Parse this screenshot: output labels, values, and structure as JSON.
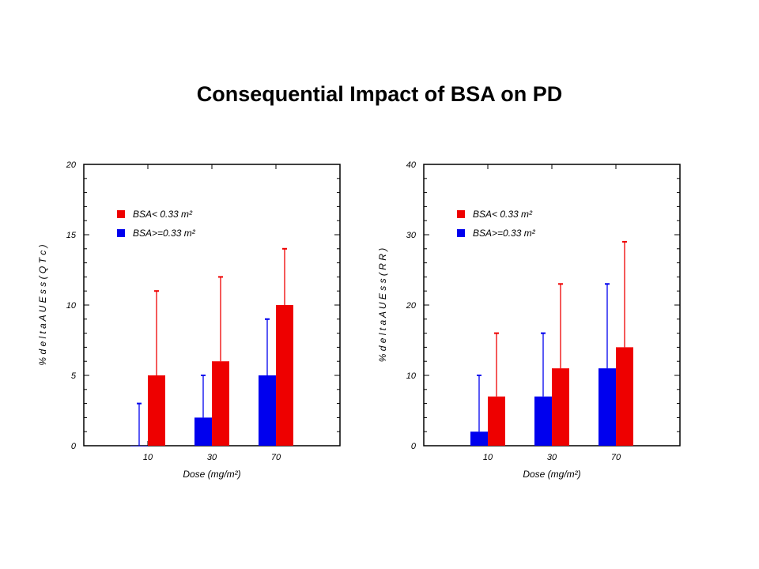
{
  "page": {
    "title": "Consequential Impact of BSA on PD"
  },
  "colors": {
    "low_bsa": "#ee0000",
    "high_bsa": "#0000ee",
    "axis": "#000000"
  },
  "chart_data": [
    {
      "id": "left",
      "type": "bar",
      "xlabel": "Dose (mg/m²)",
      "ylabel": "% d e l t a   A U E s s ( Q T c )",
      "ylim": [
        0,
        20
      ],
      "yticks": [
        0,
        5,
        10,
        15,
        20
      ],
      "categories": [
        "10",
        "30",
        "70"
      ],
      "legend_position": "top-left",
      "series": [
        {
          "name": "BSA< 0.33 m²",
          "key": "low",
          "values": [
            5,
            6,
            10
          ],
          "error_upper": [
            11,
            12,
            14
          ]
        },
        {
          "name": "BSA>=0.33 m²",
          "key": "high",
          "values": [
            0,
            2,
            5
          ],
          "error_upper": [
            3,
            5,
            9
          ]
        }
      ]
    },
    {
      "id": "right",
      "type": "bar",
      "xlabel": "Dose (mg/m²)",
      "ylabel": "% d e l t a   A U E s s ( R R )",
      "ylim": [
        0,
        40
      ],
      "yticks": [
        0,
        10,
        20,
        30,
        40
      ],
      "categories": [
        "10",
        "30",
        "70"
      ],
      "legend_position": "top-left",
      "series": [
        {
          "name": "BSA< 0.33 m²",
          "key": "low",
          "values": [
            7,
            11,
            14
          ],
          "error_upper": [
            16,
            23,
            29
          ]
        },
        {
          "name": "BSA>=0.33 m²",
          "key": "high",
          "values": [
            2,
            7,
            11
          ],
          "error_upper": [
            10,
            16,
            23
          ]
        }
      ]
    }
  ]
}
